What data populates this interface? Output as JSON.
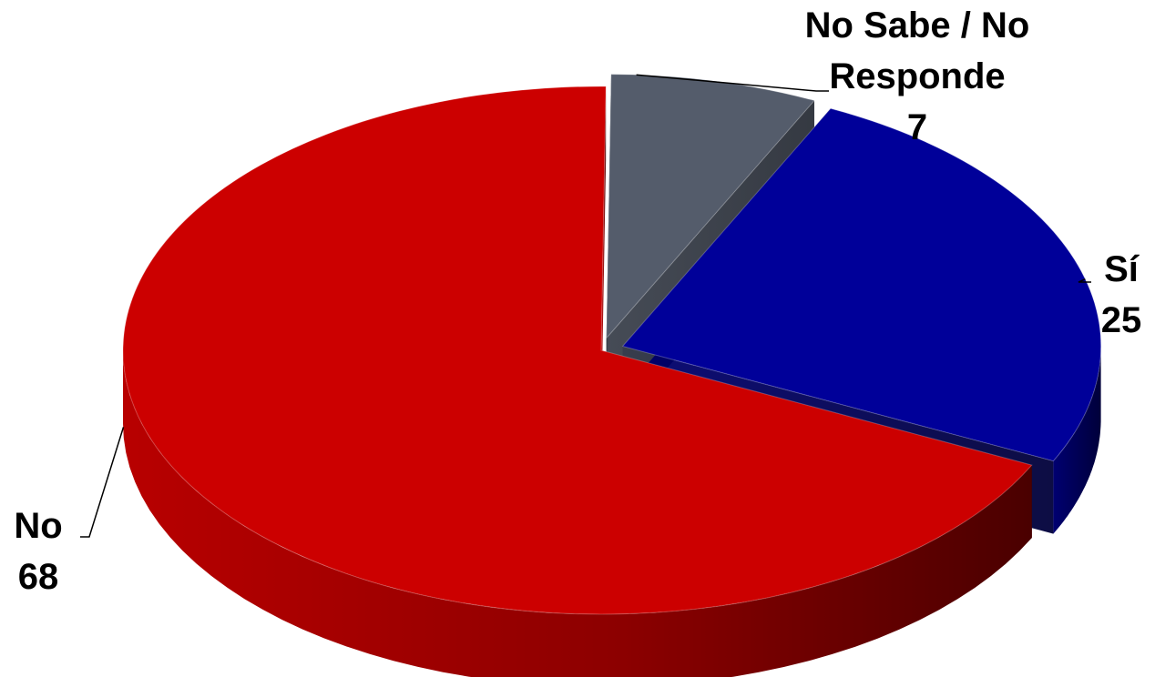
{
  "chart_data": {
    "type": "pie",
    "style": "3d-exploded",
    "slices": [
      {
        "label": "No Sabe / No Responde",
        "label_lines": [
          "No Sabe / No",
          "Responde"
        ],
        "value": 7,
        "value_text": "7",
        "color": "#545C6B"
      },
      {
        "label": "Sí",
        "label_lines": [
          "Sí"
        ],
        "value": 25,
        "value_text": "25",
        "color": "#000099"
      },
      {
        "label": "No",
        "label_lines": [
          "No"
        ],
        "value": 68,
        "value_text": "68",
        "color": "#CC0000"
      }
    ],
    "legend": "none",
    "data_labels": "outside with leader lines"
  }
}
